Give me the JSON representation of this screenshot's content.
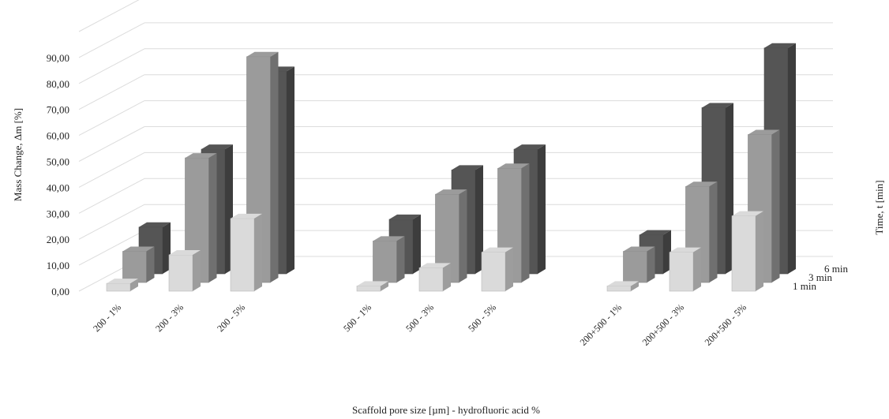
{
  "chart_data": {
    "type": "bar",
    "title": "",
    "xlabel": "Scaffold pore size [µm] - hydrofluoric acid %",
    "ylabel": "Mass Change, Δm [%]",
    "zlabel": "Time,  t [min]",
    "ylim": [
      0,
      90
    ],
    "yticks": [
      "0,00",
      "10,00",
      "20,00",
      "30,00",
      "40,00",
      "50,00",
      "60,00",
      "70,00",
      "80,00",
      "90,00"
    ],
    "categories": [
      "200 - 1%",
      "200 - 3%",
      "200 - 5%",
      "500 - 1%",
      "500 - 3%",
      "500 - 5%",
      "200+500 - 1%",
      "200+500 - 3%",
      "200+500 - 5%"
    ],
    "series": [
      {
        "name": "1 min",
        "color": "#dadada",
        "values": [
          3,
          14,
          28,
          2,
          9,
          15,
          2,
          15,
          29
        ]
      },
      {
        "name": "3 min",
        "color": "#9b9b9b",
        "values": [
          12,
          48,
          87,
          16,
          34,
          44,
          12,
          37,
          57
        ]
      },
      {
        "name": "6 min",
        "color": "#555555",
        "values": [
          18,
          48,
          78,
          21,
          40,
          48,
          15,
          64,
          87
        ]
      }
    ],
    "grid": true,
    "legend": "right depth axis"
  }
}
